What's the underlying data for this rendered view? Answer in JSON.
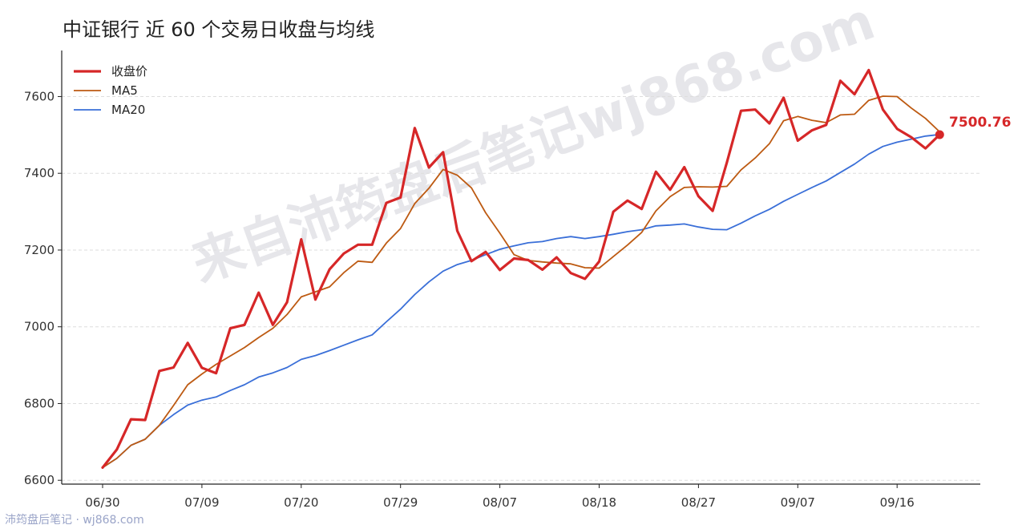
{
  "title": "中证银行 近 60 个交易日收盘与均线",
  "watermark": "来自沛筠盘后笔记wj868.com",
  "footer": "沛筠盘后笔记 · wj868.com",
  "colors": {
    "close": "#d62728",
    "ma5": "#bd5a12",
    "ma20": "#3a6fd8",
    "grid": "#dddddd",
    "axis": "#222222"
  },
  "chart_data": {
    "type": "line",
    "title": "中证银行 近 60 个交易日收盘与均线",
    "xlabel": "",
    "ylabel": "",
    "ylim": [
      6590,
      7720
    ],
    "yticks": [
      6600,
      6800,
      7000,
      7200,
      7400,
      7600
    ],
    "xticks": [
      {
        "index": 0,
        "label": "06/30"
      },
      {
        "index": 7,
        "label": "07/09"
      },
      {
        "index": 14,
        "label": "07/20"
      },
      {
        "index": 21,
        "label": "07/29"
      },
      {
        "index": 28,
        "label": "08/07"
      },
      {
        "index": 35,
        "label": "08/18"
      },
      {
        "index": 42,
        "label": "08/27"
      },
      {
        "index": 49,
        "label": "09/07"
      },
      {
        "index": 56,
        "label": "09/16"
      }
    ],
    "grid": "horizontal dashed",
    "legend": "top-left",
    "end_label": "7500.76",
    "series": [
      {
        "name": "收盘价",
        "key": "close",
        "width": 3.2,
        "values": [
          6633,
          6680,
          6759,
          6757,
          6885,
          6894,
          6958,
          6893,
          6879,
          6996,
          7005,
          7089,
          7005,
          7064,
          7228,
          7071,
          7150,
          7191,
          7214,
          7214,
          7323,
          7337,
          7518,
          7415,
          7455,
          7250,
          7171,
          7195,
          7148,
          7178,
          7174,
          7149,
          7181,
          7140,
          7125,
          7170,
          7300,
          7329,
          7307,
          7404,
          7357,
          7416,
          7340,
          7302,
          7428,
          7563,
          7566,
          7530,
          7597,
          7485,
          7512,
          7526,
          7641,
          7606,
          7669,
          7566,
          7516,
          7494,
          7465,
          7500.76
        ]
      },
      {
        "name": "MA5",
        "key": "ma5",
        "width": 1.8,
        "values": [
          6633,
          6657,
          6691,
          6707,
          6743,
          6795,
          6849,
          6877,
          6902,
          6924,
          6946,
          6972,
          6996,
          7032,
          7078,
          7091,
          7104,
          7141,
          7171,
          7168,
          7218,
          7256,
          7321,
          7361,
          7410,
          7395,
          7362,
          7297,
          7244,
          7188,
          7173,
          7169,
          7166,
          7164,
          7154,
          7153,
          7183,
          7213,
          7246,
          7302,
          7339,
          7363,
          7365,
          7364,
          7366,
          7409,
          7440,
          7477,
          7537,
          7548,
          7538,
          7532,
          7552,
          7554,
          7590,
          7601,
          7600,
          7570,
          7543,
          7508
        ]
      },
      {
        "name": "MA20",
        "key": "ma20",
        "width": 1.8,
        "values": [
          6633,
          6657,
          6691,
          6707,
          6743,
          6771,
          6796,
          6809,
          6817,
          6834,
          6849,
          6869,
          6880,
          6894,
          6915,
          6925,
          6938,
          6952,
          6966,
          6979,
          7013,
          7046,
          7084,
          7117,
          7145,
          7162,
          7173,
          7188,
          7202,
          7211,
          7219,
          7222,
          7230,
          7235,
          7230,
          7235,
          7241,
          7248,
          7253,
          7263,
          7265,
          7268,
          7260,
          7254,
          7253,
          7270,
          7289,
          7306,
          7327,
          7345,
          7363,
          7380,
          7402,
          7424,
          7450,
          7470,
          7481,
          7489,
          7497,
          7501
        ]
      }
    ]
  }
}
